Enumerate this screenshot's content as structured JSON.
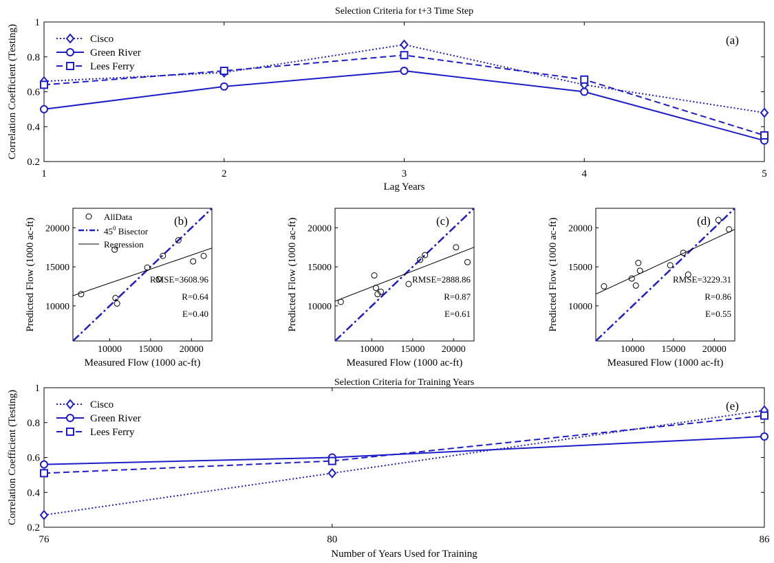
{
  "chart_data": [
    {
      "panel": "(a)",
      "type": "line",
      "title": "Selection Criteria for t+3 Time Step",
      "xlabel": "Lag Years",
      "ylabel": "Correlation Coefficient (Testing)",
      "x": [
        1,
        2,
        3,
        4,
        5
      ],
      "xticks": [
        "1",
        "2",
        "3",
        "4",
        "5"
      ],
      "xlim": [
        1,
        5
      ],
      "ylim": [
        0.2,
        1
      ],
      "yticks": [
        "0.2",
        "0.4",
        "0.6",
        "0.8",
        "1"
      ],
      "legend_position": "top-left",
      "grid": false,
      "series": [
        {
          "name": "Cisco",
          "values": [
            0.66,
            0.71,
            0.87,
            0.64,
            0.48
          ],
          "style": "dotted",
          "marker": "diamond",
          "color": "#1c1cc8"
        },
        {
          "name": "Green River",
          "values": [
            0.5,
            0.63,
            0.72,
            0.6,
            0.32
          ],
          "style": "solid",
          "marker": "circle",
          "color": "#1c1cc8"
        },
        {
          "name": "Lees Ferry",
          "values": [
            0.64,
            0.72,
            0.81,
            0.67,
            0.35
          ],
          "style": "dashed",
          "marker": "square",
          "color": "#1c1cc8"
        }
      ]
    },
    {
      "panel": "(b)",
      "type": "scatter",
      "xlabel": "Measured Flow (1000 ac-ft)",
      "ylabel": "Predicted Flow (1000 ac-ft)",
      "xlim": [
        5500,
        22500
      ],
      "ylim": [
        5500,
        22500
      ],
      "xticks": [
        "10000",
        "15000",
        "20000"
      ],
      "yticks": [
        "10000",
        "15000",
        "20000"
      ],
      "legend": [
        "AllData",
        "45",
        "0",
        " Bisector",
        "Regression"
      ],
      "points": [
        [
          6500,
          11500
        ],
        [
          10600,
          17200
        ],
        [
          10700,
          11000
        ],
        [
          10900,
          10300
        ],
        [
          14600,
          14900
        ],
        [
          16000,
          13400
        ],
        [
          16500,
          16400
        ],
        [
          18400,
          18400
        ],
        [
          20200,
          15700
        ],
        [
          21500,
          16400
        ]
      ],
      "regression": [
        [
          5500,
          11300
        ],
        [
          22500,
          17400
        ]
      ],
      "stats": [
        "RMSE=3608.96",
        "R=0.64",
        "E=0.40"
      ],
      "bisector_color": "#1c1cc8"
    },
    {
      "panel": "(c)",
      "type": "scatter",
      "xlabel": "Measured Flow (1000 ac-ft)",
      "ylabel": "Predicted Flow (1000 ac-ft)",
      "xlim": [
        5500,
        22500
      ],
      "ylim": [
        5500,
        22500
      ],
      "xticks": [
        "10000",
        "15000",
        "20000"
      ],
      "yticks": [
        "10000",
        "15000",
        "20000"
      ],
      "points": [
        [
          6200,
          10500
        ],
        [
          10300,
          13900
        ],
        [
          10500,
          12300
        ],
        [
          10700,
          11500
        ],
        [
          11100,
          11800
        ],
        [
          14500,
          12800
        ],
        [
          15900,
          15900
        ],
        [
          16500,
          16500
        ],
        [
          20300,
          17500
        ],
        [
          21700,
          15600
        ]
      ],
      "regression": [
        [
          5500,
          10600
        ],
        [
          22500,
          17500
        ]
      ],
      "stats": [
        "RMSE=2888.86",
        "R=0.87",
        "E=0.61"
      ],
      "bisector_color": "#1c1cc8"
    },
    {
      "panel": "(d)",
      "type": "scatter",
      "xlabel": "Measured Flow (1000 ac-ft)",
      "ylabel": "Predicted Flow (1000 ac-ft)",
      "xlim": [
        5500,
        22500
      ],
      "ylim": [
        5500,
        22500
      ],
      "xticks": [
        "10000",
        "15000",
        "20000"
      ],
      "yticks": [
        "10000",
        "15000",
        "20000"
      ],
      "points": [
        [
          6500,
          12500
        ],
        [
          9900,
          13500
        ],
        [
          10400,
          12600
        ],
        [
          10700,
          15500
        ],
        [
          10900,
          14500
        ],
        [
          14600,
          15200
        ],
        [
          16200,
          16800
        ],
        [
          16800,
          14000
        ],
        [
          20500,
          21000
        ],
        [
          21800,
          19800
        ]
      ],
      "regression": [
        [
          5500,
          11500
        ],
        [
          22500,
          19800
        ]
      ],
      "stats": [
        "RMSE=3229.31",
        "R=0.86",
        "E=0.55"
      ],
      "bisector_color": "#1c1cc8"
    },
    {
      "panel": "(e)",
      "type": "line",
      "title": "Selection Criteria for Training Years",
      "xlabel": "Number of Years Used for Training",
      "ylabel": "Correlation Coefficient (Testing)",
      "x": [
        76,
        80,
        86
      ],
      "xticks": [
        "76",
        "80",
        "86"
      ],
      "xlim": [
        76,
        86
      ],
      "ylim": [
        0.2,
        1
      ],
      "yticks": [
        "0.2",
        "0.4",
        "0.6",
        "0.8",
        "1"
      ],
      "legend_position": "top-left",
      "grid": false,
      "series": [
        {
          "name": "Cisco",
          "values": [
            0.27,
            0.51,
            0.87
          ],
          "style": "dotted",
          "marker": "diamond",
          "color": "#1c1cc8"
        },
        {
          "name": "Green River",
          "values": [
            0.56,
            0.6,
            0.72
          ],
          "style": "solid",
          "marker": "circle",
          "color": "#1c1cc8"
        },
        {
          "name": "Lees Ferry",
          "values": [
            0.51,
            0.58,
            0.84
          ],
          "style": "dashed",
          "marker": "square",
          "color": "#1c1cc8"
        }
      ]
    }
  ]
}
